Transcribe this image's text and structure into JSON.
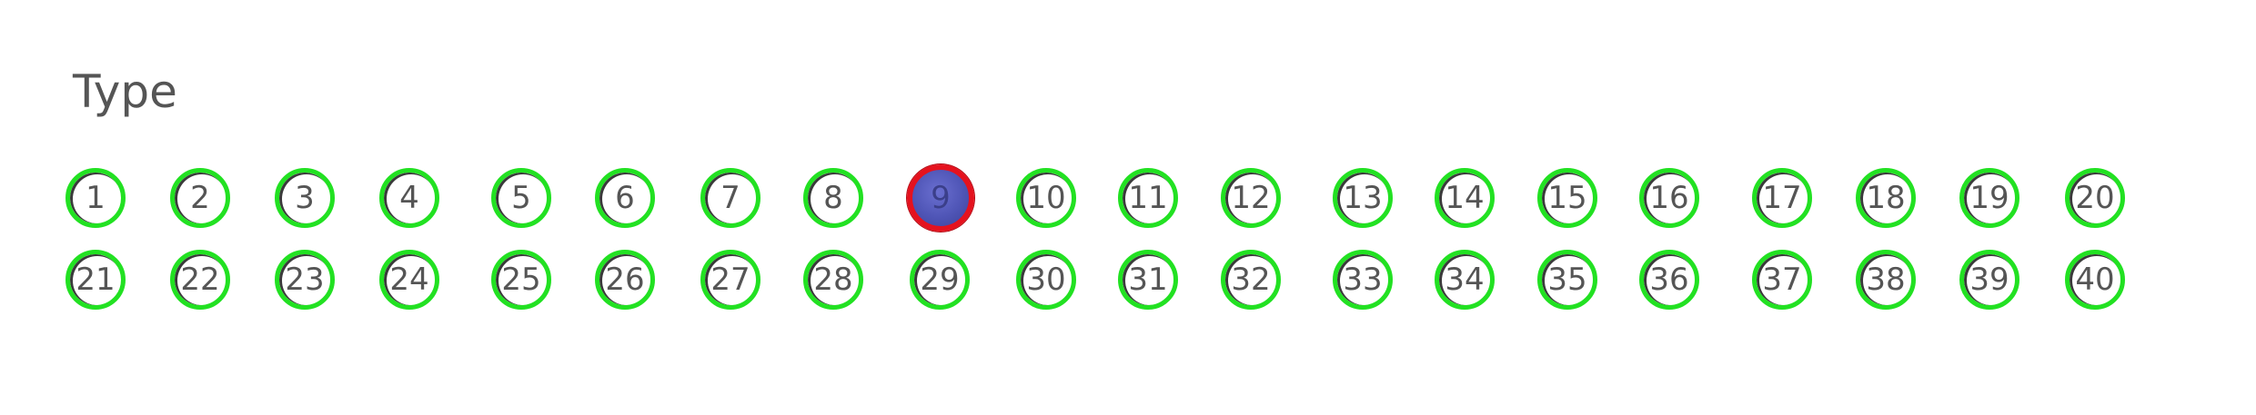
{
  "section": {
    "title": "Type"
  },
  "options": {
    "row1": [
      "1",
      "2",
      "3",
      "4",
      "5",
      "6",
      "7",
      "8",
      "9",
      "10",
      "11",
      "12",
      "13",
      "14",
      "15",
      "16",
      "17",
      "18",
      "19",
      "20"
    ],
    "row2": [
      "21",
      "22",
      "23",
      "24",
      "25",
      "26",
      "27",
      "28",
      "29",
      "30",
      "31",
      "32",
      "33",
      "34",
      "35",
      "36",
      "37",
      "38",
      "39",
      "40"
    ]
  },
  "selected_value": "9",
  "colors": {
    "ring": "#22e122",
    "selected_ring": "#e5121e",
    "selected_fill": "#4f55b6",
    "text": "#555555"
  }
}
